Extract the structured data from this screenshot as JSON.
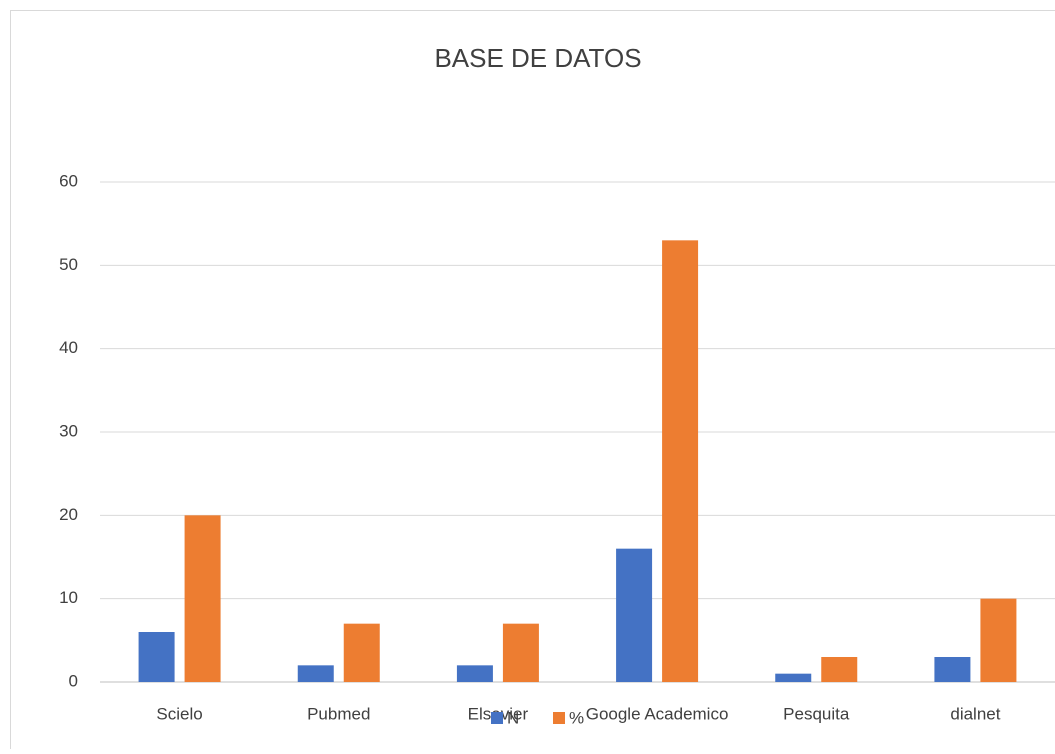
{
  "chart_data": {
    "type": "bar",
    "title": "BASE DE DATOS",
    "categories": [
      "Scielo",
      "Pubmed",
      "Elsevier",
      "Google Academico",
      "Pesquita",
      "dialnet"
    ],
    "series": [
      {
        "name": "N",
        "color": "#4472c4",
        "values": [
          6,
          2,
          2,
          16,
          1,
          3
        ]
      },
      {
        "name": "%",
        "color": "#ed7d31",
        "values": [
          20,
          7,
          7,
          53,
          3,
          10
        ]
      }
    ],
    "ylim": [
      0,
      60
    ],
    "yticks": [
      0,
      10,
      20,
      30,
      40,
      50,
      60
    ],
    "grid": true,
    "legend": "bottom"
  }
}
